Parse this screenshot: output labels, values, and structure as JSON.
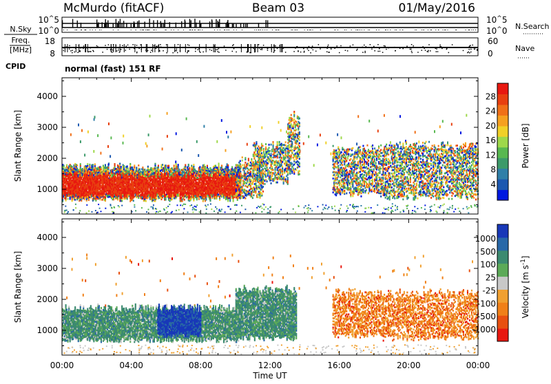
{
  "header": {
    "station": "McMurdo (fitACF)",
    "beam": "Beam 03",
    "date": "01/May/2016"
  },
  "strips": {
    "nsky_label": "N.Sky",
    "nsky_ticks": [
      "10^5",
      "10^0"
    ],
    "nsearch_label": "N.Search",
    "nsearch_ticks": [
      "10^5",
      "10^0"
    ],
    "freq_label": "Freq.",
    "freq_unit": "[MHz]",
    "freq_ticks": [
      "18",
      "8"
    ],
    "nave_label": "Nave",
    "nave_ticks": [
      "60",
      "0"
    ],
    "cpid_label": "CPID",
    "cpid_value": "normal (fast) 151 RF"
  },
  "chart_data": [
    {
      "type": "heatmap",
      "panel": "power",
      "xlabel": "",
      "ylabel": "Slant Range [km]",
      "xlim_hours": [
        0,
        24
      ],
      "ylim": [
        200,
        4600
      ],
      "yticks": [
        "4000",
        "3000",
        "2000",
        "1000"
      ],
      "colorbar": {
        "label": "Power [dB]",
        "ticks": [
          "28",
          "24",
          "20",
          "16",
          "12",
          "8",
          "4"
        ],
        "scale": [
          "#0018e0",
          "#1c58b0",
          "#2f7fa8",
          "#3c9a6a",
          "#58b850",
          "#9ed84a",
          "#f0d028",
          "#f5a020",
          "#f07018",
          "#e84010",
          "#e81810"
        ]
      },
      "regions": [
        {
          "t_start": 0.0,
          "t_end": 10.3,
          "r_start": 650,
          "r_end": 1700,
          "level": "28+"
        },
        {
          "t_start": 10.0,
          "t_end": 11.6,
          "r_start": 700,
          "r_end": 1900,
          "level": "8-16"
        },
        {
          "t_start": 11.0,
          "t_end": 13.0,
          "r_start": 1200,
          "r_end": 2400,
          "level": "4-20"
        },
        {
          "t_start": 13.0,
          "t_end": 13.7,
          "r_start": 1500,
          "r_end": 3400,
          "level": "8-24"
        },
        {
          "t_start": 15.6,
          "t_end": 18.5,
          "r_start": 800,
          "r_end": 2300,
          "level": "8-28"
        },
        {
          "t_start": 18.5,
          "t_end": 24.0,
          "r_start": 700,
          "r_end": 2400,
          "level": "4-28"
        }
      ]
    },
    {
      "type": "heatmap",
      "panel": "velocity",
      "xlabel": "Time UT",
      "ylabel": "Slant Range [km]",
      "xlim_hours": [
        0,
        24
      ],
      "ylim": [
        200,
        4600
      ],
      "yticks": [
        "4000",
        "3000",
        "2000",
        "1000"
      ],
      "xticks": [
        "00:00",
        "04:00",
        "08:00",
        "12:00",
        "16:00",
        "20:00",
        "00:00"
      ],
      "colorbar": {
        "label": "Velocity [m s^-1]",
        "ticks": [
          "1000",
          "500",
          "100",
          "25",
          "-25",
          "-100",
          "-500",
          "-1000"
        ],
        "scale": [
          "#1838b8",
          "#2868a8",
          "#3c8a70",
          "#5caa58",
          "#c8c8c8",
          "#f0a030",
          "#f08018",
          "#e85010",
          "#e81810"
        ]
      },
      "regions": [
        {
          "t_start": 0.0,
          "t_end": 10.3,
          "r_start": 650,
          "r_end": 1700,
          "level": "25 to 500 (toward)"
        },
        {
          "t_start": 5.5,
          "t_end": 8.0,
          "r_start": 800,
          "r_end": 1700,
          "level": "500 to 1000 (toward)"
        },
        {
          "t_start": 10.0,
          "t_end": 13.5,
          "r_start": 700,
          "r_end": 2300,
          "level": "25 to 500 (toward)"
        },
        {
          "t_start": 15.6,
          "t_end": 18.5,
          "r_start": 800,
          "r_end": 2200,
          "level": "-100 to -500 (away)"
        },
        {
          "t_start": 18.5,
          "t_end": 24.0,
          "r_start": 700,
          "r_end": 2200,
          "level": "-100 to -1000 (away)"
        }
      ]
    }
  ]
}
